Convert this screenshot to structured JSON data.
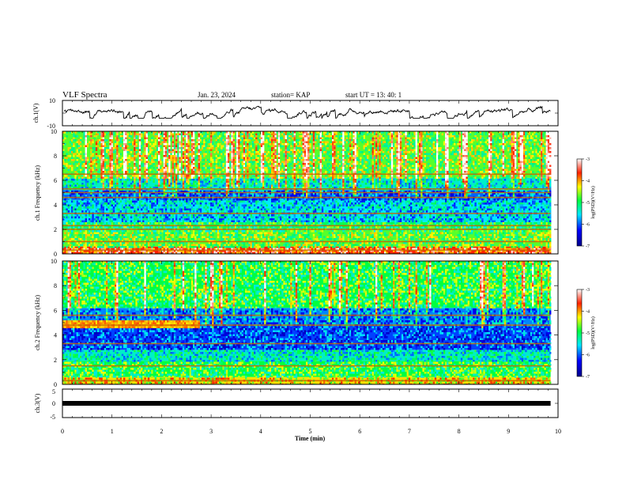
{
  "header": {
    "title": "VLF Spectra",
    "date": "Jan. 23, 2024",
    "station": "station= KAP",
    "start": "start  UT  =   13: 40: 1"
  },
  "chart_data": [
    {
      "type": "line",
      "panel": "ch1-waveform",
      "ylabel": "ch.1(V)",
      "ylim": [
        -10,
        10
      ],
      "y_ticks": [
        "10",
        "-10"
      ],
      "x_range_min": [
        0,
        9.85
      ],
      "approx_mean": 2.5,
      "approx_range": [
        -4,
        7
      ]
    },
    {
      "type": "heatmap",
      "panel": "ch1-spectrogram",
      "ylabel": "ch.1 Frequency (kHz)",
      "ylim": [
        0,
        10
      ],
      "y_ticks": [
        "0",
        "2",
        "4",
        "6",
        "8",
        "10"
      ],
      "colorbar": {
        "label": "log(PSD)(V²/Hz)",
        "range": [
          -7,
          -3
        ],
        "ticks": [
          "-3",
          "-4",
          "-5",
          "-6",
          "-7"
        ]
      },
      "bands_khz": [
        {
          "from": 0,
          "to": 0.6,
          "level": -3.6
        },
        {
          "from": 0.6,
          "to": 1.9,
          "level": -4.7
        },
        {
          "from": 1.9,
          "to": 2.6,
          "level": -5.0
        },
        {
          "from": 2.6,
          "to": 4.4,
          "level": -5.6
        },
        {
          "from": 4.4,
          "to": 5.2,
          "level": -6.0
        },
        {
          "from": 5.2,
          "to": 6.2,
          "level": -5.4
        },
        {
          "from": 6.2,
          "to": 10,
          "level": -4.7
        }
      ],
      "tones_khz": [
        0.3,
        1.0,
        2.0,
        2.3,
        3.3,
        4.6,
        5.0,
        5.3,
        6.5
      ]
    },
    {
      "type": "heatmap",
      "panel": "ch2-spectrogram",
      "ylabel": "ch.2 Frequency (kHz)",
      "ylim": [
        0,
        10
      ],
      "y_ticks": [
        "0",
        "2",
        "4",
        "6",
        "8",
        "10"
      ],
      "colorbar": {
        "label": "log(PSD)(V²/Hz)",
        "range": [
          -7,
          -3
        ],
        "ticks": [
          "-3",
          "-4",
          "-5",
          "-6",
          "-7"
        ]
      },
      "bands_khz": [
        {
          "from": 0,
          "to": 0.6,
          "level": -4.2
        },
        {
          "from": 0.6,
          "to": 1.9,
          "level": -4.9
        },
        {
          "from": 1.9,
          "to": 2.8,
          "level": -5.4
        },
        {
          "from": 2.8,
          "to": 4.8,
          "level": -6.1
        },
        {
          "from": 4.8,
          "to": 6.2,
          "level": -5.9
        },
        {
          "from": 6.2,
          "to": 10,
          "level": -4.9
        }
      ],
      "tones_khz": [
        0.3,
        1.5,
        3.3,
        4.8,
        5.6
      ]
    },
    {
      "type": "line",
      "panel": "ch3",
      "ylabel": "ch.3(V)",
      "ylim": [
        -5,
        5
      ],
      "y_ticks": [
        "5",
        "0",
        "-5"
      ],
      "value": 0,
      "x_range_min": [
        0,
        9.85
      ]
    }
  ],
  "x_axis": {
    "label": "Time  (min)",
    "range": [
      0,
      10
    ],
    "ticks": [
      "0",
      "1",
      "2",
      "3",
      "4",
      "5",
      "6",
      "7",
      "8",
      "9",
      "10"
    ]
  }
}
